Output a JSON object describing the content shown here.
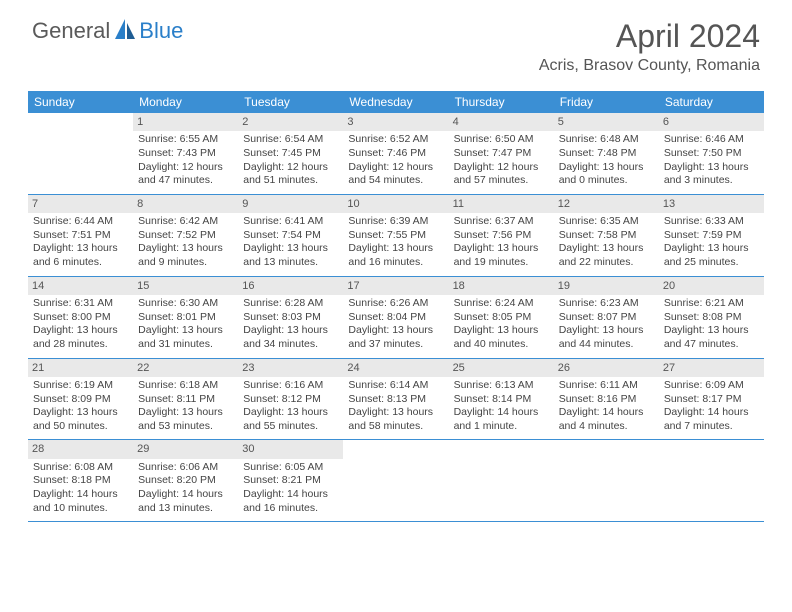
{
  "logo": {
    "text1": "General",
    "text2": "Blue"
  },
  "title": "April 2024",
  "location": "Acris, Brasov County, Romania",
  "colors": {
    "header_bg": "#3b8fd4",
    "header_text": "#ffffff",
    "daynum_bg": "#e9e9e9",
    "body_text": "#444444",
    "divider": "#3b8fd4",
    "title_text": "#555555",
    "logo_gray": "#5a5a5a",
    "logo_blue": "#2a7fc9"
  },
  "day_names": [
    "Sunday",
    "Monday",
    "Tuesday",
    "Wednesday",
    "Thursday",
    "Friday",
    "Saturday"
  ],
  "weeks": [
    [
      {
        "n": "",
        "sr": "",
        "ss": "",
        "dl": ""
      },
      {
        "n": "1",
        "sr": "Sunrise: 6:55 AM",
        "ss": "Sunset: 7:43 PM",
        "dl": "Daylight: 12 hours and 47 minutes."
      },
      {
        "n": "2",
        "sr": "Sunrise: 6:54 AM",
        "ss": "Sunset: 7:45 PM",
        "dl": "Daylight: 12 hours and 51 minutes."
      },
      {
        "n": "3",
        "sr": "Sunrise: 6:52 AM",
        "ss": "Sunset: 7:46 PM",
        "dl": "Daylight: 12 hours and 54 minutes."
      },
      {
        "n": "4",
        "sr": "Sunrise: 6:50 AM",
        "ss": "Sunset: 7:47 PM",
        "dl": "Daylight: 12 hours and 57 minutes."
      },
      {
        "n": "5",
        "sr": "Sunrise: 6:48 AM",
        "ss": "Sunset: 7:48 PM",
        "dl": "Daylight: 13 hours and 0 minutes."
      },
      {
        "n": "6",
        "sr": "Sunrise: 6:46 AM",
        "ss": "Sunset: 7:50 PM",
        "dl": "Daylight: 13 hours and 3 minutes."
      }
    ],
    [
      {
        "n": "7",
        "sr": "Sunrise: 6:44 AM",
        "ss": "Sunset: 7:51 PM",
        "dl": "Daylight: 13 hours and 6 minutes."
      },
      {
        "n": "8",
        "sr": "Sunrise: 6:42 AM",
        "ss": "Sunset: 7:52 PM",
        "dl": "Daylight: 13 hours and 9 minutes."
      },
      {
        "n": "9",
        "sr": "Sunrise: 6:41 AM",
        "ss": "Sunset: 7:54 PM",
        "dl": "Daylight: 13 hours and 13 minutes."
      },
      {
        "n": "10",
        "sr": "Sunrise: 6:39 AM",
        "ss": "Sunset: 7:55 PM",
        "dl": "Daylight: 13 hours and 16 minutes."
      },
      {
        "n": "11",
        "sr": "Sunrise: 6:37 AM",
        "ss": "Sunset: 7:56 PM",
        "dl": "Daylight: 13 hours and 19 minutes."
      },
      {
        "n": "12",
        "sr": "Sunrise: 6:35 AM",
        "ss": "Sunset: 7:58 PM",
        "dl": "Daylight: 13 hours and 22 minutes."
      },
      {
        "n": "13",
        "sr": "Sunrise: 6:33 AM",
        "ss": "Sunset: 7:59 PM",
        "dl": "Daylight: 13 hours and 25 minutes."
      }
    ],
    [
      {
        "n": "14",
        "sr": "Sunrise: 6:31 AM",
        "ss": "Sunset: 8:00 PM",
        "dl": "Daylight: 13 hours and 28 minutes."
      },
      {
        "n": "15",
        "sr": "Sunrise: 6:30 AM",
        "ss": "Sunset: 8:01 PM",
        "dl": "Daylight: 13 hours and 31 minutes."
      },
      {
        "n": "16",
        "sr": "Sunrise: 6:28 AM",
        "ss": "Sunset: 8:03 PM",
        "dl": "Daylight: 13 hours and 34 minutes."
      },
      {
        "n": "17",
        "sr": "Sunrise: 6:26 AM",
        "ss": "Sunset: 8:04 PM",
        "dl": "Daylight: 13 hours and 37 minutes."
      },
      {
        "n": "18",
        "sr": "Sunrise: 6:24 AM",
        "ss": "Sunset: 8:05 PM",
        "dl": "Daylight: 13 hours and 40 minutes."
      },
      {
        "n": "19",
        "sr": "Sunrise: 6:23 AM",
        "ss": "Sunset: 8:07 PM",
        "dl": "Daylight: 13 hours and 44 minutes."
      },
      {
        "n": "20",
        "sr": "Sunrise: 6:21 AM",
        "ss": "Sunset: 8:08 PM",
        "dl": "Daylight: 13 hours and 47 minutes."
      }
    ],
    [
      {
        "n": "21",
        "sr": "Sunrise: 6:19 AM",
        "ss": "Sunset: 8:09 PM",
        "dl": "Daylight: 13 hours and 50 minutes."
      },
      {
        "n": "22",
        "sr": "Sunrise: 6:18 AM",
        "ss": "Sunset: 8:11 PM",
        "dl": "Daylight: 13 hours and 53 minutes."
      },
      {
        "n": "23",
        "sr": "Sunrise: 6:16 AM",
        "ss": "Sunset: 8:12 PM",
        "dl": "Daylight: 13 hours and 55 minutes."
      },
      {
        "n": "24",
        "sr": "Sunrise: 6:14 AM",
        "ss": "Sunset: 8:13 PM",
        "dl": "Daylight: 13 hours and 58 minutes."
      },
      {
        "n": "25",
        "sr": "Sunrise: 6:13 AM",
        "ss": "Sunset: 8:14 PM",
        "dl": "Daylight: 14 hours and 1 minute."
      },
      {
        "n": "26",
        "sr": "Sunrise: 6:11 AM",
        "ss": "Sunset: 8:16 PM",
        "dl": "Daylight: 14 hours and 4 minutes."
      },
      {
        "n": "27",
        "sr": "Sunrise: 6:09 AM",
        "ss": "Sunset: 8:17 PM",
        "dl": "Daylight: 14 hours and 7 minutes."
      }
    ],
    [
      {
        "n": "28",
        "sr": "Sunrise: 6:08 AM",
        "ss": "Sunset: 8:18 PM",
        "dl": "Daylight: 14 hours and 10 minutes."
      },
      {
        "n": "29",
        "sr": "Sunrise: 6:06 AM",
        "ss": "Sunset: 8:20 PM",
        "dl": "Daylight: 14 hours and 13 minutes."
      },
      {
        "n": "30",
        "sr": "Sunrise: 6:05 AM",
        "ss": "Sunset: 8:21 PM",
        "dl": "Daylight: 14 hours and 16 minutes."
      },
      {
        "n": "",
        "sr": "",
        "ss": "",
        "dl": ""
      },
      {
        "n": "",
        "sr": "",
        "ss": "",
        "dl": ""
      },
      {
        "n": "",
        "sr": "",
        "ss": "",
        "dl": ""
      },
      {
        "n": "",
        "sr": "",
        "ss": "",
        "dl": ""
      }
    ]
  ]
}
